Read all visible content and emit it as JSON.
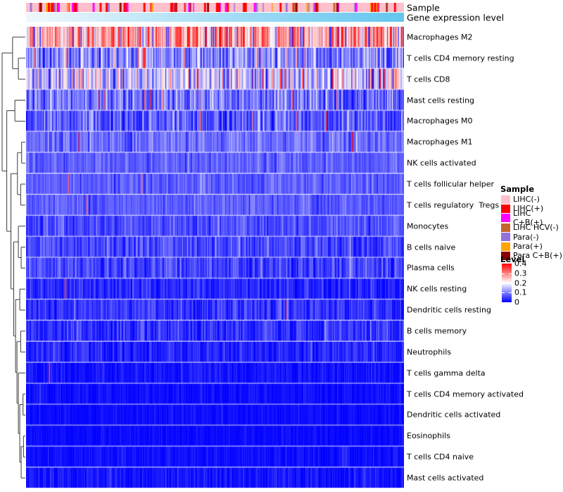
{
  "figure": {
    "top_annotation_labels": {
      "sample": "Sample",
      "gene_expression": "Gene expression level"
    }
  },
  "legend": {
    "sample": {
      "title": "Sample",
      "items": [
        {
          "label": "LIHC(-)",
          "color": "#FFC0CB"
        },
        {
          "label": "LIHC(+)",
          "color": "#FF0000"
        },
        {
          "label": "LIHC C+B(+)",
          "color": "#FF00FF"
        },
        {
          "label": "LIHC HCV(-)",
          "color": "#C4662B"
        },
        {
          "label": "Para(-)",
          "color": "#9370DB"
        },
        {
          "label": "Para(+)",
          "color": "#FFA500"
        },
        {
          "label": "Para C+B(+)",
          "color": "#8B0000"
        }
      ]
    },
    "level": {
      "title": "Level",
      "ticks": [
        "0.4",
        "0.3",
        "0.2",
        "0.1",
        "0"
      ],
      "gradient_top": "#FF0000",
      "gradient_mid": "#FFFFFF",
      "gradient_bottom": "#0000FF"
    }
  },
  "chart_data": {
    "type": "heatmap",
    "description": "Clustered heatmap of immune cell infiltration levels (CIBERSORT-style) across ~380 unlabeled sample columns; rows hierarchically clustered (dendrogram at left). Values read from Level legend range 0 to 0.4, blue-white-red colormap with white at 0.2.",
    "value_range": [
      0,
      0.4
    ],
    "colormap": {
      "low": "#0000FF",
      "mid": "#FFFFFF",
      "high": "#FF0000",
      "mid_value": 0.2
    },
    "n_columns_estimate": 380,
    "rows": [
      {
        "label": "Macrophages M2",
        "mean": 0.27,
        "std": 0.07,
        "spike_p": 0.02,
        "dip_p": 0.07
      },
      {
        "label": "T cells CD4 memory resting",
        "mean": 0.1,
        "std": 0.055,
        "spike_p": 0.05,
        "dip_p": 0.0
      },
      {
        "label": "T cells CD8",
        "mean": 0.17,
        "std": 0.075,
        "spike_p": 0.04,
        "dip_p": 0.05
      },
      {
        "label": "Mast cells resting",
        "mean": 0.09,
        "std": 0.045,
        "spike_p": 0.02,
        "dip_p": 0.0
      },
      {
        "label": "Macrophages M0",
        "mean": 0.07,
        "std": 0.045,
        "spike_p": 0.02,
        "dip_p": 0.0
      },
      {
        "label": "Macrophages M1",
        "mean": 0.085,
        "std": 0.03,
        "spike_p": 0.005,
        "dip_p": 0.0
      },
      {
        "label": "NK cells activated",
        "mean": 0.075,
        "std": 0.022,
        "spike_p": 0.003,
        "dip_p": 0.0
      },
      {
        "label": "T cells follicular helper",
        "mean": 0.072,
        "std": 0.022,
        "spike_p": 0.003,
        "dip_p": 0.0
      },
      {
        "label": "T cells regulatory  Tregs",
        "mean": 0.07,
        "std": 0.022,
        "spike_p": 0.002,
        "dip_p": 0.0
      },
      {
        "label": "Monocytes",
        "mean": 0.06,
        "std": 0.025,
        "spike_p": 0.002,
        "dip_p": 0.0
      },
      {
        "label": "B cells naive",
        "mean": 0.055,
        "std": 0.03,
        "spike_p": 0.003,
        "dip_p": 0.0
      },
      {
        "label": "Plasma cells",
        "mean": 0.05,
        "std": 0.032,
        "spike_p": 0.004,
        "dip_p": 0.0
      },
      {
        "label": "NK cells resting",
        "mean": 0.03,
        "std": 0.025,
        "spike_p": 0.002,
        "dip_p": 0.0
      },
      {
        "label": "Dendritic cells resting",
        "mean": 0.04,
        "std": 0.027,
        "spike_p": 0.002,
        "dip_p": 0.0
      },
      {
        "label": "B cells memory",
        "mean": 0.035,
        "std": 0.03,
        "spike_p": 0.003,
        "dip_p": 0.0
      },
      {
        "label": "Neutrophils",
        "mean": 0.025,
        "std": 0.02,
        "spike_p": 0.001,
        "dip_p": 0.0
      },
      {
        "label": "T cells gamma delta",
        "mean": 0.012,
        "std": 0.015,
        "spike_p": 0.001,
        "dip_p": 0.0
      },
      {
        "label": "T cells CD4 memory activated",
        "mean": 0.008,
        "std": 0.012,
        "spike_p": 0.0005,
        "dip_p": 0.0
      },
      {
        "label": "Dendritic cells activated",
        "mean": 0.006,
        "std": 0.01,
        "spike_p": 0.0005,
        "dip_p": 0.0
      },
      {
        "label": "Eosinophils",
        "mean": 0.005,
        "std": 0.009,
        "spike_p": 0.0005,
        "dip_p": 0.0
      },
      {
        "label": "T cells CD4 naive",
        "mean": 0.008,
        "std": 0.013,
        "spike_p": 0.002,
        "dip_p": 0.0
      },
      {
        "label": "Mast cells activated",
        "mean": 0.012,
        "std": 0.018,
        "spike_p": 0.002,
        "dip_p": 0.0
      }
    ],
    "column_annotations": [
      {
        "name": "Sample",
        "type": "categorical",
        "categories": [
          {
            "label": "LIHC(-)",
            "color": "#FFC0CB",
            "approx_fraction": 0.5
          },
          {
            "label": "LIHC(+)",
            "color": "#FF0000",
            "approx_fraction": 0.18
          },
          {
            "label": "LIHC C+B(+)",
            "color": "#FF00FF",
            "approx_fraction": 0.12
          },
          {
            "label": "LIHC HCV(-)",
            "color": "#C4662B",
            "approx_fraction": 0.03
          },
          {
            "label": "Para(-)",
            "color": "#9370DB",
            "approx_fraction": 0.08
          },
          {
            "label": "Para(+)",
            "color": "#FFA500",
            "approx_fraction": 0.05
          },
          {
            "label": "Para C+B(+)",
            "color": "#8B0000",
            "approx_fraction": 0.04
          }
        ]
      },
      {
        "name": "Gene expression level",
        "type": "continuous",
        "gradient_left": "#F0F8FC",
        "gradient_right": "#63C6EF",
        "order": "columns sorted ascending left to right"
      }
    ],
    "row_dendrogram": {
      "h": 1.0,
      "children": [
        {
          "h": 0.55,
          "children": [
            {
              "leaf": 0
            },
            {
              "h": 0.3,
              "children": [
                {
                  "leaf": 1
                },
                {
                  "leaf": 2
                }
              ]
            }
          ]
        },
        {
          "h": 0.8,
          "children": [
            {
              "h": 0.45,
              "children": [
                {
                  "leaf": 3
                },
                {
                  "leaf": 4
                }
              ]
            },
            {
              "h": 0.62,
              "children": [
                {
                  "h": 0.34,
                  "children": [
                    {
                      "h": 0.16,
                      "children": [
                        {
                          "leaf": 5
                        },
                        {
                          "leaf": 6
                        }
                      ]
                    },
                    {
                      "h": 0.2,
                      "children": [
                        {
                          "leaf": 7
                        },
                        {
                          "leaf": 8
                        }
                      ]
                    }
                  ]
                },
                {
                  "h": 0.5,
                  "children": [
                    {
                      "h": 0.3,
                      "children": [
                        {
                          "leaf": 9
                        },
                        {
                          "h": 0.18,
                          "children": [
                            {
                              "leaf": 10
                            },
                            {
                              "leaf": 11
                            }
                          ]
                        }
                      ]
                    },
                    {
                      "h": 0.42,
                      "children": [
                        {
                          "h": 0.24,
                          "children": [
                            {
                              "leaf": 12
                            },
                            {
                              "leaf": 13
                            }
                          ]
                        },
                        {
                          "h": 0.36,
                          "children": [
                            {
                              "h": 0.2,
                              "children": [
                                {
                                  "leaf": 14
                                },
                                {
                                  "leaf": 15
                                }
                              ]
                            },
                            {
                              "h": 0.3,
                              "children": [
                                {
                                  "leaf": 16
                                },
                                {
                                  "h": 0.24,
                                  "children": [
                                    {
                                      "h": 0.1,
                                      "children": [
                                        {
                                          "leaf": 17
                                        },
                                        {
                                          "leaf": 18
                                        }
                                      ]
                                    },
                                    {
                                      "h": 0.18,
                                      "children": [
                                        {
                                          "h": 0.08,
                                          "children": [
                                            {
                                              "leaf": 19
                                            },
                                            {
                                              "leaf": 20
                                            }
                                          ]
                                        },
                                        {
                                          "leaf": 21
                                        }
                                      ]
                                    }
                                  ]
                                }
                              ]
                            }
                          ]
                        }
                      ]
                    }
                  ]
                }
              ]
            }
          ]
        }
      ]
    }
  }
}
